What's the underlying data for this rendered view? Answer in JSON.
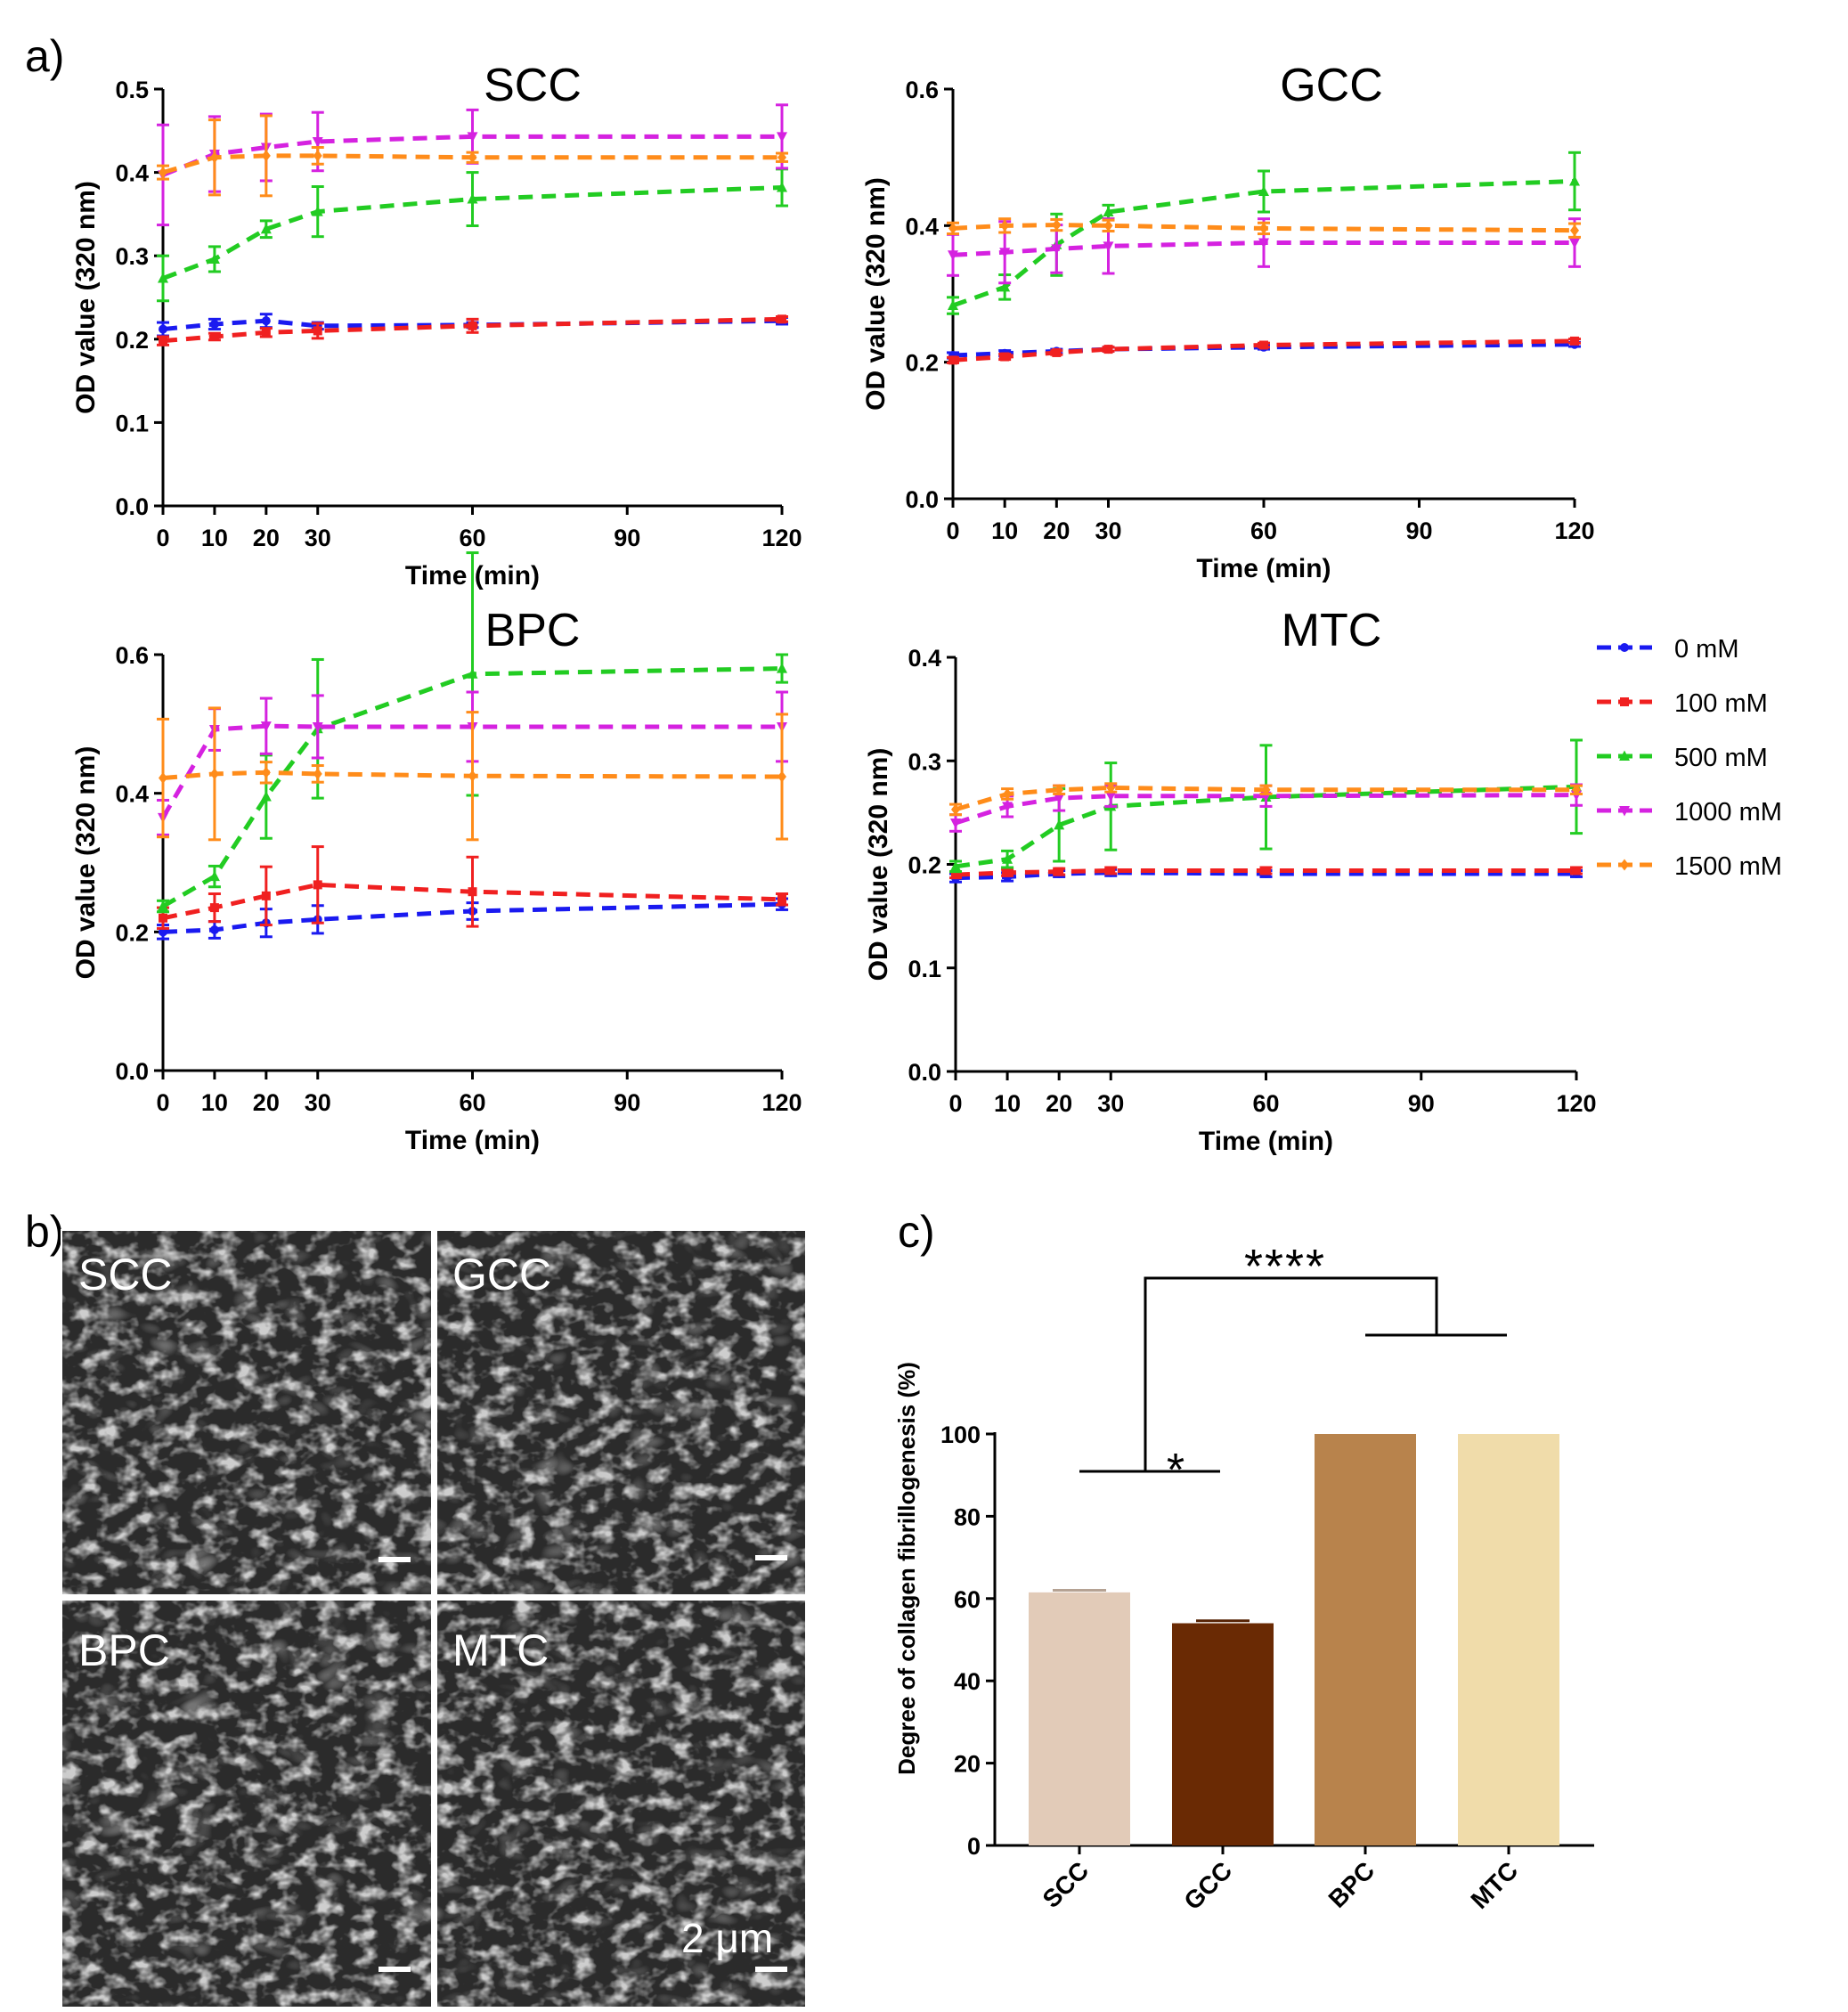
{
  "panel_labels": {
    "a": "a)",
    "b": "b)",
    "c": "c)"
  },
  "legend": {
    "items": [
      {
        "label": "0 mM",
        "color": "#1a1af0",
        "marker": "circle"
      },
      {
        "label": "100 mM",
        "color": "#f02020",
        "marker": "square"
      },
      {
        "label": "500 mM",
        "color": "#22cc22",
        "marker": "triangle-up"
      },
      {
        "label": "1000 mM",
        "color": "#d522e0",
        "marker": "triangle-down"
      },
      {
        "label": "1500 mM",
        "color": "#ff8c1a",
        "marker": "diamond"
      }
    ]
  },
  "sem": {
    "panels": [
      {
        "label": "SCC"
      },
      {
        "label": "GCC"
      },
      {
        "label": "BPC"
      },
      {
        "label": "MTC"
      }
    ],
    "scale_bar_label": "2 μm"
  },
  "chart_data": [
    {
      "type": "line",
      "title": "SCC",
      "xlabel": "Time (min)",
      "ylabel": "OD value (320 nm)",
      "x": [
        0,
        10,
        20,
        30,
        60,
        120
      ],
      "xticks": [
        0,
        10,
        20,
        30,
        60,
        90,
        120
      ],
      "xlim": [
        0,
        120
      ],
      "ylim": [
        0,
        0.5
      ],
      "yticks": [
        0.0,
        0.1,
        0.2,
        0.3,
        0.4,
        0.5
      ],
      "ytick_labels": [
        "0.0",
        "0.1",
        "0.2",
        "0.3",
        "0.4",
        "0.5"
      ],
      "series": [
        {
          "name": "0 mM",
          "values": [
            0.212,
            0.218,
            0.222,
            0.216,
            0.217,
            0.222
          ],
          "errors": [
            0.008,
            0.006,
            0.008,
            0.004,
            0.003,
            0.004
          ]
        },
        {
          "name": "100 mM",
          "values": [
            0.198,
            0.203,
            0.208,
            0.21,
            0.216,
            0.224
          ],
          "errors": [
            0.005,
            0.004,
            0.005,
            0.009,
            0.008,
            0.003
          ]
        },
        {
          "name": "500 mM",
          "values": [
            0.273,
            0.296,
            0.332,
            0.353,
            0.368,
            0.382
          ],
          "errors": [
            0.027,
            0.015,
            0.01,
            0.03,
            0.032,
            0.022
          ]
        },
        {
          "name": "1000 mM",
          "values": [
            0.397,
            0.422,
            0.43,
            0.437,
            0.443,
            0.443
          ],
          "errors": [
            0.06,
            0.045,
            0.04,
            0.035,
            0.032,
            0.038
          ]
        },
        {
          "name": "1500 mM",
          "values": [
            0.4,
            0.418,
            0.42,
            0.42,
            0.418,
            0.418
          ],
          "errors": [
            0.008,
            0.045,
            0.048,
            0.01,
            0.006,
            0.005
          ]
        }
      ]
    },
    {
      "type": "line",
      "title": "GCC",
      "xlabel": "Time (min)",
      "ylabel": "OD value (320 nm)",
      "x": [
        0,
        10,
        20,
        30,
        60,
        120
      ],
      "xticks": [
        0,
        10,
        20,
        30,
        60,
        90,
        120
      ],
      "xlim": [
        0,
        120
      ],
      "ylim": [
        0,
        0.6
      ],
      "yticks": [
        0.0,
        0.2,
        0.4,
        0.6
      ],
      "ytick_labels": [
        "0.0",
        "0.2",
        "0.4",
        "0.6"
      ],
      "series": [
        {
          "name": "0 mM",
          "values": [
            0.21,
            0.213,
            0.216,
            0.219,
            0.222,
            0.226
          ],
          "errors": [
            0.004,
            0.004,
            0.003,
            0.003,
            0.003,
            0.003
          ]
        },
        {
          "name": "100 mM",
          "values": [
            0.203,
            0.208,
            0.214,
            0.219,
            0.225,
            0.231
          ],
          "errors": [
            0.004,
            0.004,
            0.003,
            0.003,
            0.003,
            0.003
          ]
        },
        {
          "name": "500 mM",
          "values": [
            0.283,
            0.31,
            0.372,
            0.42,
            0.45,
            0.465
          ],
          "errors": [
            0.012,
            0.018,
            0.045,
            0.01,
            0.03,
            0.042
          ]
        },
        {
          "name": "1000 mM",
          "values": [
            0.357,
            0.361,
            0.366,
            0.37,
            0.375,
            0.375
          ],
          "errors": [
            0.03,
            0.045,
            0.035,
            0.04,
            0.035,
            0.035
          ]
        },
        {
          "name": "1500 mM",
          "values": [
            0.396,
            0.4,
            0.401,
            0.4,
            0.396,
            0.393
          ],
          "errors": [
            0.008,
            0.01,
            0.008,
            0.008,
            0.008,
            0.01
          ]
        }
      ]
    },
    {
      "type": "line",
      "title": "BPC",
      "xlabel": "Time (min)",
      "ylabel": "OD value (320 nm)",
      "x": [
        0,
        10,
        20,
        30,
        60,
        120
      ],
      "xticks": [
        0,
        10,
        20,
        30,
        60,
        90,
        120
      ],
      "xlim": [
        0,
        120
      ],
      "ylim": [
        0,
        0.6
      ],
      "yticks": [
        0.0,
        0.2,
        0.4,
        0.6
      ],
      "ytick_labels": [
        "0.0",
        "0.2",
        "0.4",
        "0.6"
      ],
      "series": [
        {
          "name": "0 mM",
          "values": [
            0.2,
            0.203,
            0.213,
            0.218,
            0.23,
            0.24
          ],
          "errors": [
            0.01,
            0.012,
            0.02,
            0.02,
            0.012,
            0.008
          ]
        },
        {
          "name": "100 mM",
          "values": [
            0.22,
            0.235,
            0.252,
            0.268,
            0.258,
            0.247
          ],
          "errors": [
            0.015,
            0.02,
            0.042,
            0.055,
            0.05,
            0.008
          ]
        },
        {
          "name": "500 mM",
          "values": [
            0.237,
            0.28,
            0.395,
            0.493,
            0.572,
            0.58
          ],
          "errors": [
            0.008,
            0.015,
            0.06,
            0.1,
            0.175,
            0.02
          ]
        },
        {
          "name": "1000 mM",
          "values": [
            0.365,
            0.492,
            0.497,
            0.496,
            0.496,
            0.496
          ],
          "errors": [
            0.025,
            0.03,
            0.04,
            0.045,
            0.05,
            0.05
          ]
        },
        {
          "name": "1500 mM",
          "values": [
            0.422,
            0.428,
            0.43,
            0.428,
            0.425,
            0.424
          ],
          "errors": [
            0.085,
            0.095,
            0.015,
            0.012,
            0.092,
            0.09
          ]
        }
      ]
    },
    {
      "type": "line",
      "title": "MTC",
      "xlabel": "Time (min)",
      "ylabel": "OD value (320 nm)",
      "x": [
        0,
        10,
        20,
        30,
        60,
        120
      ],
      "xticks": [
        0,
        10,
        20,
        30,
        60,
        90,
        120
      ],
      "xlim": [
        0,
        120
      ],
      "ylim": [
        0,
        0.4
      ],
      "yticks": [
        0.0,
        0.1,
        0.2,
        0.3,
        0.4
      ],
      "ytick_labels": [
        "0.0",
        "0.1",
        "0.2",
        "0.3",
        "0.4"
      ],
      "series": [
        {
          "name": "0 mM",
          "values": [
            0.187,
            0.188,
            0.191,
            0.192,
            0.191,
            0.191
          ],
          "errors": [
            0.004,
            0.004,
            0.003,
            0.003,
            0.003,
            0.003
          ]
        },
        {
          "name": "100 mM",
          "values": [
            0.19,
            0.192,
            0.193,
            0.194,
            0.194,
            0.194
          ],
          "errors": [
            0.003,
            0.003,
            0.003,
            0.003,
            0.003,
            0.003
          ]
        },
        {
          "name": "500 mM",
          "values": [
            0.198,
            0.205,
            0.238,
            0.256,
            0.265,
            0.275
          ],
          "errors": [
            0.005,
            0.008,
            0.035,
            0.042,
            0.05,
            0.045
          ]
        },
        {
          "name": "1000 mM",
          "values": [
            0.24,
            0.256,
            0.264,
            0.266,
            0.266,
            0.267
          ],
          "errors": [
            0.008,
            0.01,
            0.012,
            0.01,
            0.01,
            0.01
          ]
        },
        {
          "name": "1500 mM",
          "values": [
            0.253,
            0.268,
            0.272,
            0.274,
            0.272,
            0.272
          ],
          "errors": [
            0.005,
            0.005,
            0.004,
            0.004,
            0.004,
            0.004
          ]
        }
      ]
    },
    {
      "type": "bar",
      "xlabel": "",
      "ylabel": "Degree of collagen fibrillogenesis (%)",
      "categories": [
        "SCC",
        "GCC",
        "BPC",
        "MTC"
      ],
      "values": [
        61.5,
        54.0,
        100.0,
        100.0
      ],
      "errors": [
        0.5,
        0.6,
        0,
        0
      ],
      "colors": [
        "#e2cbb8",
        "#6a2a04",
        "#b8834c",
        "#f0dcaa"
      ],
      "ylim": [
        0,
        100
      ],
      "yticks": [
        0,
        20,
        40,
        60,
        80,
        100
      ],
      "ytick_labels": [
        "0",
        "20",
        "40",
        "60",
        "80",
        "100"
      ],
      "annotations": [
        {
          "text": "*",
          "between": [
            "SCC",
            "GCC"
          ]
        },
        {
          "text": "****",
          "between": [
            [
              "SCC",
              "GCC"
            ],
            [
              "BPC",
              "MTC"
            ]
          ]
        }
      ]
    }
  ]
}
